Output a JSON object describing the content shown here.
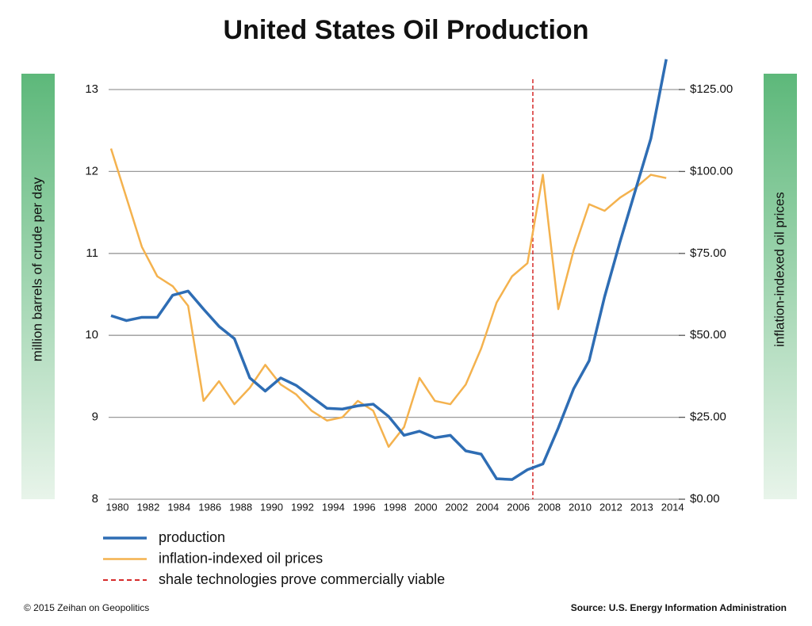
{
  "chart_data": {
    "type": "line",
    "title": "United States Oil Production",
    "ylabel": "million barrels of crude per day",
    "y2label": "inflation-indexed oil prices",
    "categories": [
      "1980",
      null,
      "1982",
      null,
      "1984",
      null,
      "1986",
      null,
      "1988",
      null,
      "1990",
      null,
      "1992",
      null,
      "1994",
      null,
      "1996",
      null,
      "1998",
      null,
      "2000",
      null,
      "2002",
      null,
      "2004",
      null,
      "2006",
      null,
      "2008",
      null,
      "2010",
      null,
      "2012",
      null,
      "2013",
      null,
      "2014"
    ],
    "series": [
      {
        "name": "production",
        "color": "#2e6db4",
        "axis": "y",
        "values": [
          10.24,
          10.18,
          10.22,
          10.22,
          10.49,
          10.54,
          10.32,
          10.11,
          9.96,
          9.48,
          9.32,
          9.48,
          9.39,
          9.25,
          9.11,
          9.1,
          9.14,
          9.16,
          9.01,
          8.78,
          8.83,
          8.75,
          8.78,
          8.59,
          8.55,
          8.25,
          8.24,
          8.36,
          8.43,
          8.87,
          9.35,
          9.69,
          10.47,
          11.14,
          11.77,
          12.4,
          13.37
        ]
      },
      {
        "name": "inflation-indexed oil prices",
        "color": "#f4b24e",
        "axis": "y2",
        "values": [
          107,
          92,
          77,
          68,
          65,
          59,
          30,
          36,
          29,
          34,
          41,
          35,
          32,
          27,
          24,
          25,
          30,
          27,
          16,
          22,
          37,
          30,
          29,
          35,
          46,
          60,
          68,
          72,
          99,
          58,
          76,
          90,
          88,
          92,
          95,
          99,
          98
        ]
      }
    ],
    "annotation": {
      "name": "shale technologies prove commercially viable",
      "color": "#d62b2b",
      "x": 27.35
    },
    "ylim": [
      8,
      13.35
    ],
    "yticks": [
      8,
      9,
      10,
      11,
      12,
      13
    ],
    "y2lim": [
      0,
      129.4
    ],
    "y2ticks": [
      {
        "value": 0,
        "label": "$0.00"
      },
      {
        "value": 25,
        "label": "$25.00"
      },
      {
        "value": 50,
        "label": "$50.00"
      },
      {
        "value": 75,
        "label": "$75.00"
      },
      {
        "value": 100,
        "label": "$100.00"
      },
      {
        "value": 125,
        "label": "$125.00"
      }
    ],
    "grid": true,
    "footer_left": "© 2015 Zeihan on Geopolitics",
    "footer_right": "Source: U.S. Energy Information Administration"
  }
}
